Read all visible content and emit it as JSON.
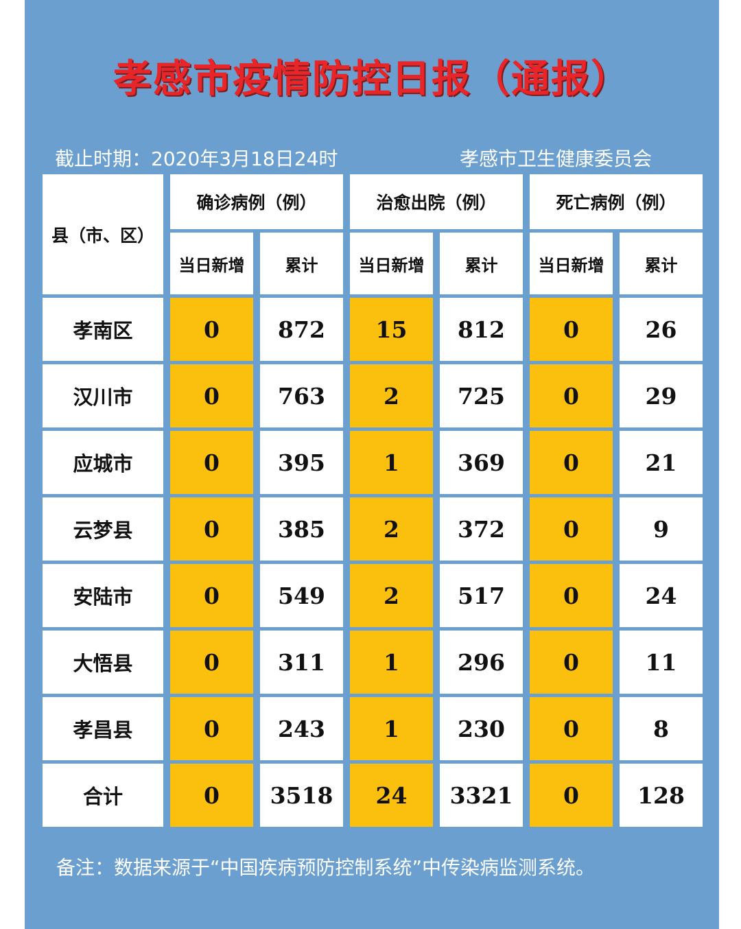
{
  "title": "孝感市疫情防控日报（通报）",
  "as_of": "截止时期：2020年3月18日24时",
  "issuer": "孝感市卫生健康委员会",
  "table": {
    "corner_header": "县（市、区）",
    "groups": [
      "确诊病例（例）",
      "治愈出院（例）",
      "死亡病例（例）"
    ],
    "subheaders": [
      "当日新增",
      "累计",
      "当日新增",
      "累计",
      "当日新增",
      "累计"
    ],
    "rows": [
      {
        "name": "孝南区",
        "values": [
          "0",
          "872",
          "15",
          "812",
          "0",
          "26"
        ]
      },
      {
        "name": "汉川市",
        "values": [
          "0",
          "763",
          "2",
          "725",
          "0",
          "29"
        ]
      },
      {
        "name": "应城市",
        "values": [
          "0",
          "395",
          "1",
          "369",
          "0",
          "21"
        ]
      },
      {
        "name": "云梦县",
        "values": [
          "0",
          "385",
          "2",
          "372",
          "0",
          "9"
        ]
      },
      {
        "name": "安陆市",
        "values": [
          "0",
          "549",
          "2",
          "517",
          "0",
          "24"
        ]
      },
      {
        "name": "大悟县",
        "values": [
          "0",
          "311",
          "1",
          "296",
          "0",
          "11"
        ]
      },
      {
        "name": "孝昌县",
        "values": [
          "0",
          "243",
          "1",
          "230",
          "0",
          "8"
        ]
      },
      {
        "name": "合计",
        "values": [
          "0",
          "3518",
          "24",
          "3321",
          "0",
          "128"
        ]
      }
    ]
  },
  "note": "备注：数据来源于“中国疾病预防控制系统”中传染病监测系统。",
  "colors": {
    "background": "#6a9fcf",
    "title": "#e8262a",
    "highlight": "#fbbf0e"
  }
}
